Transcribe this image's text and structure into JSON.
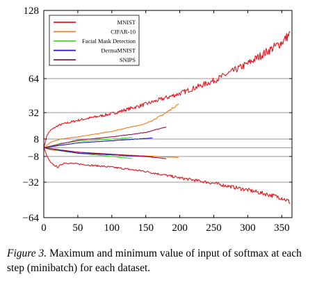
{
  "chart_data": {
    "type": "line",
    "title": "",
    "xlabel": "",
    "ylabel": "",
    "xlim": [
      0,
      365
    ],
    "x_ticks": [
      0,
      50,
      100,
      150,
      200,
      250,
      300,
      350
    ],
    "y_scale": "symlog",
    "y_ticks": [
      -64,
      -32,
      -8,
      8,
      32,
      64,
      128
    ],
    "y_tick_labels": [
      "−64",
      "−32",
      "−8",
      "8",
      "32",
      "64",
      "128"
    ],
    "grid": "horizontal at y-ticks",
    "legend_position": "top-left",
    "series": [
      {
        "name": "MNIST",
        "color": "#e8141c",
        "max": {
          "x": [
            0,
            5,
            10,
            20,
            30,
            50,
            100,
            150,
            200,
            250,
            300,
            350,
            362
          ],
          "y": [
            0,
            12,
            16,
            20,
            22,
            25,
            31,
            40,
            50,
            62,
            78,
            98,
            106
          ]
        },
        "min": {
          "x": [
            0,
            5,
            10,
            20,
            30,
            50,
            100,
            150,
            200,
            250,
            300,
            350,
            362
          ],
          "y": [
            0,
            -8,
            -14,
            -18,
            -14,
            -15,
            -18,
            -22,
            -28,
            -33,
            -39,
            -46,
            -50
          ]
        }
      },
      {
        "name": "CIFAR-10",
        "color": "#f07f1a",
        "max": {
          "x": [
            0,
            10,
            25,
            50,
            100,
            150,
            175,
            198
          ],
          "y": [
            0,
            5,
            8,
            10,
            15,
            22,
            30,
            40
          ]
        },
        "min": {
          "x": [
            0,
            10,
            50,
            100,
            150,
            198
          ],
          "y": [
            0,
            -2,
            -4,
            -6,
            -7.5,
            -9
          ]
        }
      },
      {
        "name": "Facial Mask Detection",
        "color": "#44dd1e",
        "max": {
          "x": [
            0,
            25,
            50,
            100,
            130
          ],
          "y": [
            0,
            4,
            6,
            8,
            9.5
          ]
        },
        "min": {
          "x": [
            0,
            25,
            50,
            100,
            130
          ],
          "y": [
            0,
            -3,
            -5,
            -8,
            -10
          ]
        }
      },
      {
        "name": "DermaMNIST",
        "color": "#1a14d8",
        "max": {
          "x": [
            0,
            50,
            100,
            160
          ],
          "y": [
            0,
            4.5,
            6.5,
            9
          ]
        },
        "min": {
          "x": [
            0,
            50,
            100,
            160
          ],
          "y": [
            0,
            -5,
            -6.5,
            -8.5
          ]
        }
      },
      {
        "name": "SNIPS",
        "color": "#a0104a",
        "max": {
          "x": [
            0,
            50,
            100,
            150,
            180
          ],
          "y": [
            0,
            7,
            10,
            14,
            19
          ]
        },
        "min": {
          "x": [
            0,
            50,
            100,
            150,
            180
          ],
          "y": [
            0,
            -4,
            -6,
            -8,
            -10
          ]
        }
      }
    ]
  },
  "caption": {
    "figure_label": "Figure 3.",
    "text": " Maximum and minimum value of input of softmax at each step (minibatch) for each dataset."
  }
}
